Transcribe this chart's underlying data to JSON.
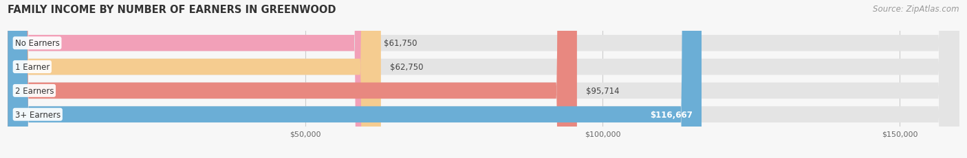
{
  "title": "FAMILY INCOME BY NUMBER OF EARNERS IN GREENWOOD",
  "source": "Source: ZipAtlas.com",
  "categories": [
    "No Earners",
    "1 Earner",
    "2 Earners",
    "3+ Earners"
  ],
  "values": [
    61750,
    62750,
    95714,
    116667
  ],
  "bar_colors": [
    "#F2A0B8",
    "#F5CC90",
    "#E88880",
    "#6BAED6"
  ],
  "value_labels": [
    "$61,750",
    "$62,750",
    "$95,714",
    "$116,667"
  ],
  "xmax": 160000,
  "bg_color": "#f7f7f7",
  "bar_bg_color": "#e4e4e4",
  "title_color": "#333333",
  "source_color": "#999999",
  "title_fontsize": 10.5,
  "source_fontsize": 8.5,
  "label_fontsize": 8.5,
  "value_fontsize": 8.5,
  "bar_height": 0.68,
  "bar_gap": 0.32
}
